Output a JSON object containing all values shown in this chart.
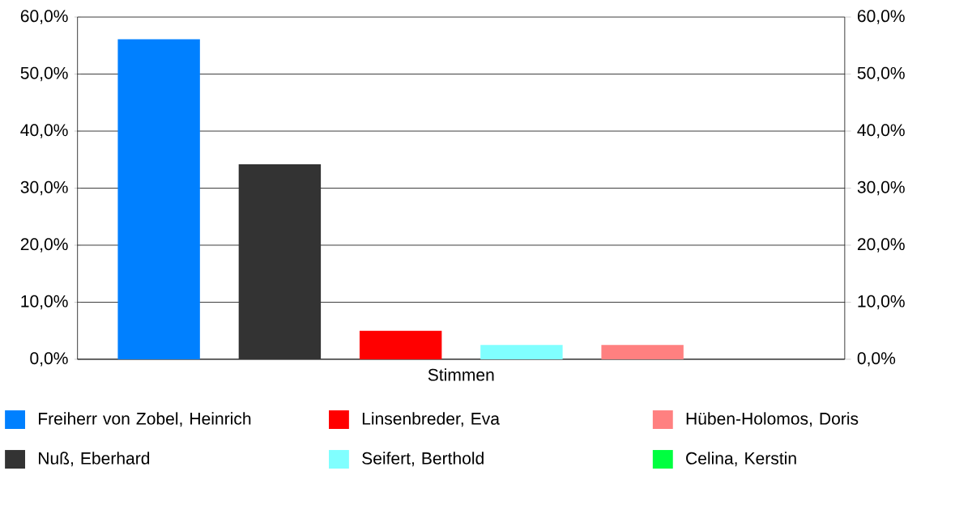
{
  "chart_data": {
    "type": "bar",
    "categories": [
      "Stimmen"
    ],
    "series": [
      {
        "name": "Freiherr von Zobel, Heinrich",
        "color": "#0080ff",
        "values": [
          56.1
        ]
      },
      {
        "name": "Nuß, Eberhard",
        "color": "#333333",
        "values": [
          34.2
        ]
      },
      {
        "name": "Linsenbreder, Eva",
        "color": "#ff0000",
        "values": [
          5.0
        ]
      },
      {
        "name": "Seifert, Berthold",
        "color": "#80ffff",
        "values": [
          2.5
        ]
      },
      {
        "name": "Hüben-Holomos, Doris",
        "color": "#ff8080",
        "values": [
          2.5
        ]
      },
      {
        "name": "Celina, Kerstin",
        "color": "#00ff40",
        "values": [
          0
        ]
      }
    ],
    "ylim": [
      0,
      60
    ],
    "yticks": [
      {
        "value": 0,
        "label": "0,0%"
      },
      {
        "value": 10,
        "label": "10,0%"
      },
      {
        "value": 20,
        "label": "20,0%"
      },
      {
        "value": 30,
        "label": "30,0%"
      },
      {
        "value": 40,
        "label": "40,0%"
      },
      {
        "value": 50,
        "label": "50,0%"
      },
      {
        "value": 60,
        "label": "60,0%"
      }
    ],
    "grid": "y",
    "legend": "bottom"
  }
}
